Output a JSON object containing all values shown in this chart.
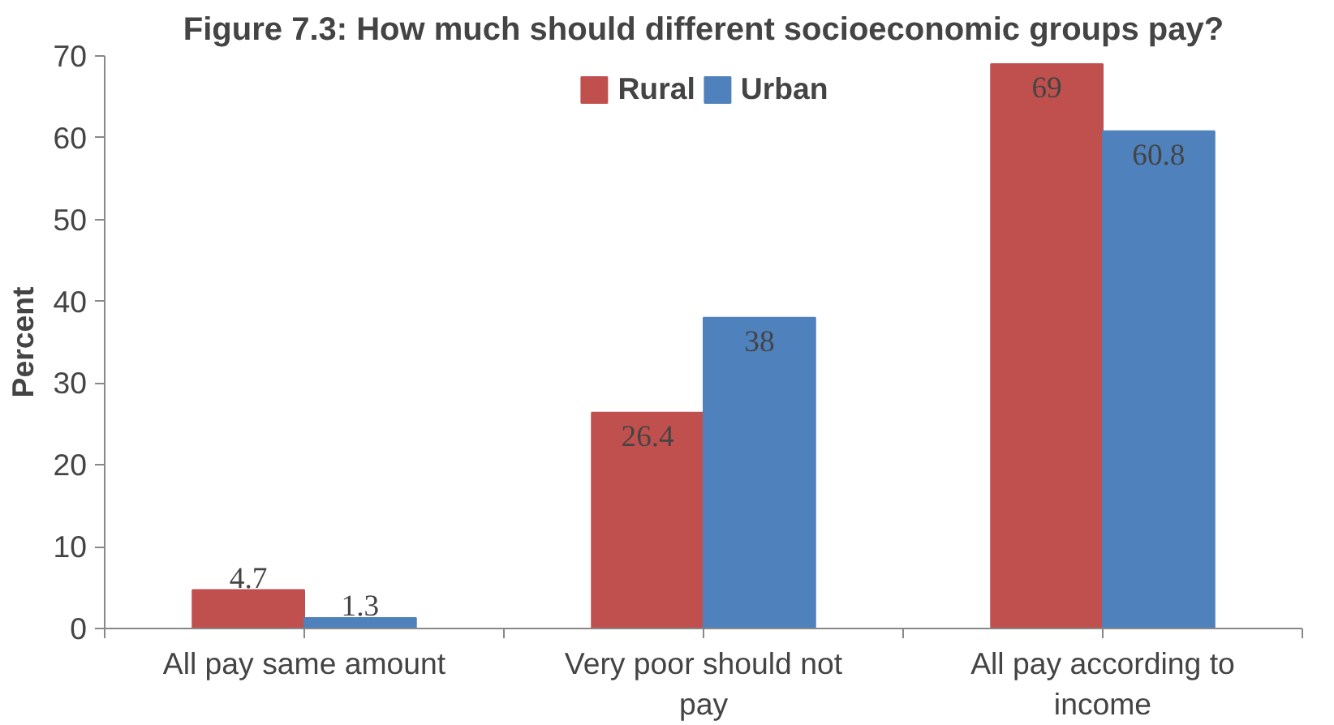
{
  "chart_data": {
    "type": "bar",
    "title": "Figure 7.3: How much should different socioeconomic groups pay?",
    "ylabel": "Percent",
    "categories": [
      "All pay same amount",
      "Very poor should not pay",
      "All pay according to income"
    ],
    "series": [
      {
        "name": "Rural",
        "color": "#c0504d",
        "values": [
          4.7,
          26.4,
          69
        ]
      },
      {
        "name": "Urban",
        "color": "#4f81bd",
        "values": [
          1.3,
          38,
          60.8
        ]
      }
    ],
    "ylim": [
      0,
      70
    ],
    "yticks": [
      0,
      10,
      20,
      30,
      40,
      50,
      60,
      70
    ],
    "grid": false,
    "legend": "top",
    "data_labels": true
  }
}
